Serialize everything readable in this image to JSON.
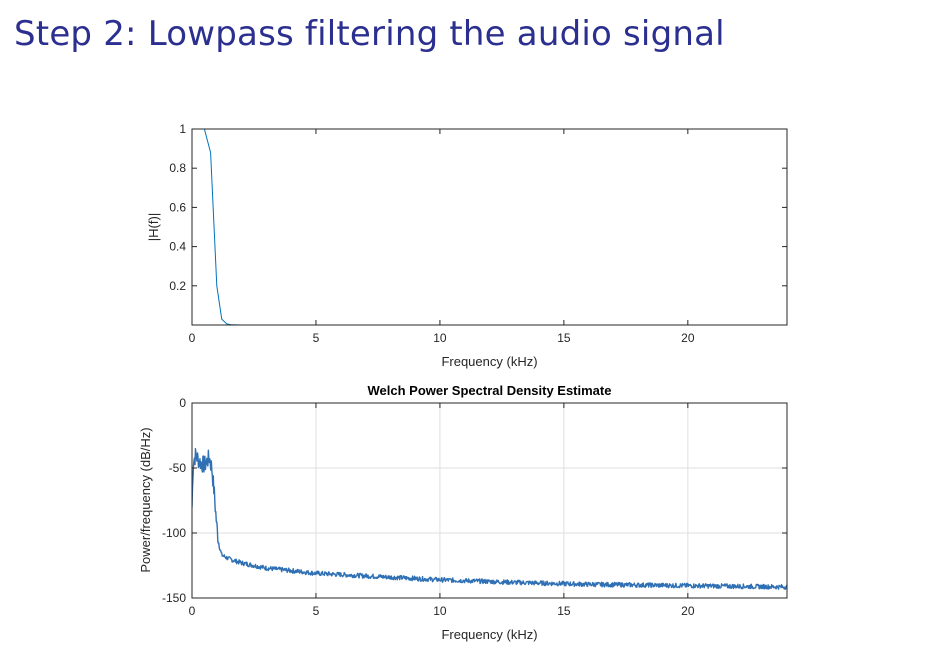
{
  "slide": {
    "title": "Step 2: Lowpass filtering the audio signal"
  },
  "chart_data": [
    {
      "type": "line",
      "title": "",
      "xlabel": "Frequency (kHz)",
      "ylabel": "|H(f)|",
      "xlim": [
        0,
        24
      ],
      "ylim": [
        0,
        1
      ],
      "xticks": [
        0,
        5,
        10,
        15,
        20
      ],
      "yticks": [
        0.2,
        0.4,
        0.6,
        0.8,
        1
      ],
      "grid": false,
      "color": "#0072BD",
      "series": [
        {
          "x": [
            0,
            0.2,
            0.5,
            0.75,
            1.0,
            1.2,
            1.4,
            1.6,
            2.0,
            24
          ],
          "y": [
            1,
            1,
            1,
            0.88,
            0.2,
            0.03,
            0.006,
            0.001,
            0,
            0
          ]
        }
      ]
    },
    {
      "type": "line",
      "title": "Welch Power Spectral Density Estimate",
      "xlabel": "Frequency (kHz)",
      "ylabel": "Power/frequency (dB/Hz)",
      "xlim": [
        0,
        24
      ],
      "ylim": [
        -150,
        0
      ],
      "xticks": [
        0,
        5,
        10,
        15,
        20
      ],
      "yticks": [
        0,
        -50,
        -100,
        -150
      ],
      "grid": true,
      "color": "#2f70b4",
      "series": [
        {
          "x": [
            0,
            0.05,
            0.15,
            0.3,
            0.5,
            0.7,
            0.8,
            0.9,
            1.0,
            1.1,
            1.2,
            1.5,
            2,
            3,
            4,
            5,
            7,
            10,
            13,
            16,
            20,
            24
          ],
          "y": [
            -80,
            -45,
            -40,
            -45,
            -48,
            -42,
            -50,
            -70,
            -95,
            -110,
            -117,
            -120,
            -123,
            -127,
            -129,
            -131,
            -133,
            -136,
            -138,
            -139.5,
            -140.5,
            -141.5
          ]
        }
      ]
    }
  ]
}
